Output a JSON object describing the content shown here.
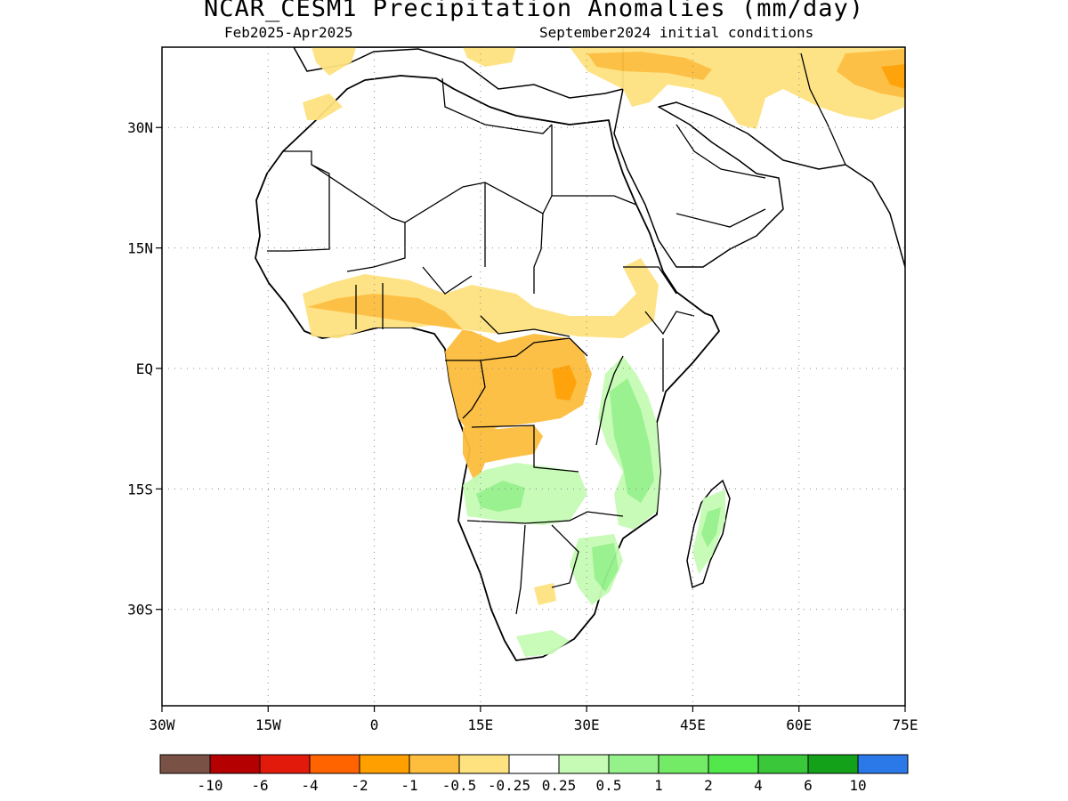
{
  "title": "NCAR_CESM1 Precipitation Anomalies (mm/day)",
  "subtitle_left": "Feb2025-Apr2025",
  "subtitle_right": "September2024 initial conditions",
  "map": {
    "lon_range": [
      -30,
      75
    ],
    "lat_range": [
      -42,
      40
    ],
    "lat_ticks": [
      {
        "value": 30,
        "label": "30N"
      },
      {
        "value": 15,
        "label": "15N"
      },
      {
        "value": 0,
        "label": "EQ"
      },
      {
        "value": -15,
        "label": "15S"
      },
      {
        "value": -30,
        "label": "30S"
      }
    ],
    "lon_ticks": [
      {
        "value": -30,
        "label": "30W"
      },
      {
        "value": -15,
        "label": "15W"
      },
      {
        "value": 0,
        "label": "0"
      },
      {
        "value": 15,
        "label": "15E"
      },
      {
        "value": 30,
        "label": "30E"
      },
      {
        "value": 45,
        "label": "45E"
      },
      {
        "value": 60,
        "label": "60E"
      },
      {
        "value": 75,
        "label": "75E"
      }
    ],
    "grid": "dotted"
  },
  "colorbar": {
    "colors": [
      "#7a5245",
      "#b40000",
      "#e21a0b",
      "#ff6400",
      "#ff9f00",
      "#fdbd3d",
      "#fde27f",
      "#ffffff",
      "#c6fbb5",
      "#95f18a",
      "#74eb67",
      "#52e84c",
      "#3ac73a",
      "#14a11a",
      "#2b79e8"
    ],
    "labels": [
      "-10",
      "-6",
      "-4",
      "-2",
      "-1",
      "-0.5",
      "-0.25",
      "0.25",
      "0.5",
      "1",
      "2",
      "4",
      "6",
      "10"
    ]
  }
}
